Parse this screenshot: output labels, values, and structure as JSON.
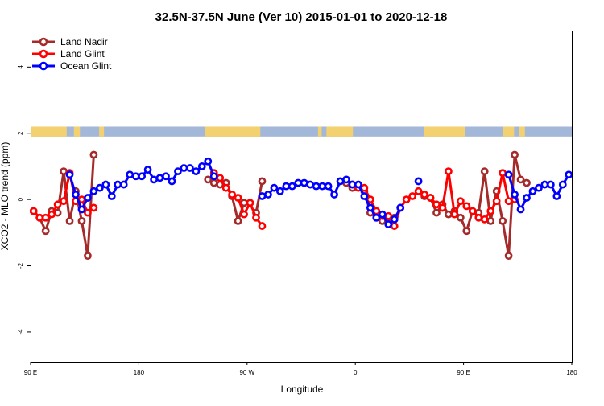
{
  "chart_data": {
    "type": "line",
    "title": "32.5N-37.5N June (Ver 10)   2015-01-01 to 2020-12-18",
    "xlabel": "Longitude",
    "ylabel": "XCO2 - MLO trend (ppm)",
    "xlim": [
      90,
      540
    ],
    "ylim": [
      -4.9,
      5.1
    ],
    "x_ticks": [
      {
        "value": 90,
        "label": "90 E"
      },
      {
        "value": 180,
        "label": "180"
      },
      {
        "value": 270,
        "label": "90 W"
      },
      {
        "value": 360,
        "label": "0"
      },
      {
        "value": 450,
        "label": "90 E"
      },
      {
        "value": 540,
        "label": "180"
      }
    ],
    "y_ticks": [
      {
        "value": -4,
        "label": "-4"
      },
      {
        "value": -2,
        "label": "-2"
      },
      {
        "value": 0,
        "label": "0"
      },
      {
        "value": 2,
        "label": "2"
      },
      {
        "value": 4,
        "label": "4"
      }
    ],
    "legend_position": "top-left",
    "land_mask": {
      "y_range": [
        1.9,
        2.2
      ],
      "ocean_color": "#a3b8d9",
      "land_color": "#f3d170",
      "land_segments": [
        [
          90,
          120
        ],
        [
          126,
          131
        ],
        [
          147,
          151
        ],
        [
          235,
          281
        ],
        [
          329,
          332
        ],
        [
          336,
          358
        ],
        [
          417,
          451
        ],
        [
          483,
          492
        ],
        [
          496,
          501
        ]
      ]
    },
    "series": [
      {
        "name": "Land Nadir",
        "color": "#a52a2a",
        "x": [
          92.5,
          97.5,
          102.5,
          107.5,
          112.5,
          117.5,
          122.5,
          127.5,
          132.5,
          137.5,
          142.5,
          237.5,
          242.5,
          247.5,
          252.5,
          257.5,
          262.5,
          267.5,
          277.5,
          282.5,
          352.5,
          357.5,
          362.5,
          367.5,
          372.5,
          377.5,
          382.5,
          387.5,
          392.5,
          417.5,
          422.5,
          427.5,
          432.5,
          437.5,
          442.5,
          447.5,
          452.5,
          457.5,
          462.5,
          467.5,
          472.5,
          477.5,
          482.5,
          487.5,
          492.5,
          497.5,
          502.5
        ],
        "y": [
          -0.35,
          -0.55,
          -0.95,
          -0.35,
          -0.4,
          0.85,
          -0.65,
          0.25,
          -0.65,
          -1.7,
          1.35,
          0.6,
          0.5,
          0.45,
          0.5,
          0.1,
          -0.65,
          -0.1,
          -0.4,
          0.55,
          0.5,
          0.35,
          0.4,
          0.25,
          -0.4,
          -0.55,
          -0.65,
          -0.55,
          -0.55,
          0.1,
          0.05,
          -0.4,
          -0.15,
          -0.45,
          -0.35,
          -0.55,
          -0.95,
          -0.35,
          -0.4,
          0.85,
          -0.65,
          0.25,
          -0.65,
          -1.7,
          1.35,
          0.6,
          0.5
        ]
      },
      {
        "name": "Land Glint",
        "color": "#ff0000",
        "x": [
          92.5,
          97.5,
          102.5,
          107.5,
          112.5,
          117.5,
          122.5,
          127.5,
          132.5,
          137.5,
          142.5,
          242.5,
          247.5,
          252.5,
          257.5,
          262.5,
          267.5,
          272.5,
          277.5,
          282.5,
          357.5,
          362.5,
          367.5,
          372.5,
          377.5,
          382.5,
          387.5,
          392.5,
          397.5,
          402.5,
          407.5,
          412.5,
          417.5,
          422.5,
          427.5,
          432.5,
          437.5,
          442.5,
          447.5,
          452.5,
          457.5,
          462.5,
          467.5,
          472.5,
          477.5,
          482.5,
          487.5,
          492.5
        ],
        "y": [
          -0.35,
          -0.55,
          -0.55,
          -0.45,
          -0.15,
          -0.05,
          0.8,
          -0.05,
          0.0,
          -0.4,
          -0.25,
          0.8,
          0.65,
          0.35,
          0.15,
          0.05,
          -0.45,
          -0.1,
          -0.55,
          -0.8,
          0.45,
          0.35,
          0.35,
          0.0,
          -0.35,
          -0.5,
          -0.5,
          -0.8,
          -0.25,
          0.0,
          0.1,
          0.25,
          0.15,
          0.05,
          -0.15,
          -0.25,
          0.85,
          -0.45,
          -0.05,
          -0.2,
          -0.35,
          -0.55,
          -0.6,
          -0.35,
          -0.05,
          0.8,
          -0.05,
          0.0
        ]
      },
      {
        "name": "Ocean Glint",
        "color": "#0000ff",
        "x": [
          122.5,
          127.5,
          132.5,
          137.5,
          142.5,
          147.5,
          152.5,
          157.5,
          162.5,
          167.5,
          172.5,
          177.5,
          182.5,
          187.5,
          192.5,
          197.5,
          202.5,
          207.5,
          212.5,
          217.5,
          222.5,
          227.5,
          232.5,
          237.5,
          242.5,
          282.5,
          287.5,
          292.5,
          297.5,
          302.5,
          307.5,
          312.5,
          317.5,
          322.5,
          327.5,
          332.5,
          337.5,
          342.5,
          347.5,
          352.5,
          357.5,
          362.5,
          367.5,
          372.5,
          377.5,
          382.5,
          387.5,
          392.5,
          397.5,
          412.5,
          487.5,
          492.5,
          497.5,
          502.5,
          507.5,
          512.5,
          517.5,
          522.5,
          527.5,
          532.5,
          537.5
        ],
        "y": [
          0.75,
          0.15,
          -0.3,
          0.05,
          0.25,
          0.35,
          0.45,
          0.1,
          0.45,
          0.45,
          0.75,
          0.7,
          0.7,
          0.9,
          0.6,
          0.65,
          0.7,
          0.55,
          0.85,
          0.95,
          0.95,
          0.85,
          1.0,
          1.15,
          0.7,
          0.1,
          0.15,
          0.35,
          0.25,
          0.4,
          0.4,
          0.5,
          0.5,
          0.45,
          0.4,
          0.4,
          0.4,
          0.15,
          0.55,
          0.6,
          0.45,
          0.45,
          0.1,
          -0.25,
          -0.55,
          -0.45,
          -0.75,
          -0.6,
          -0.25,
          0.55,
          0.75,
          0.15,
          -0.3,
          0.05,
          0.25,
          0.35,
          0.45,
          0.45,
          0.1,
          0.45,
          0.75
        ]
      }
    ]
  }
}
